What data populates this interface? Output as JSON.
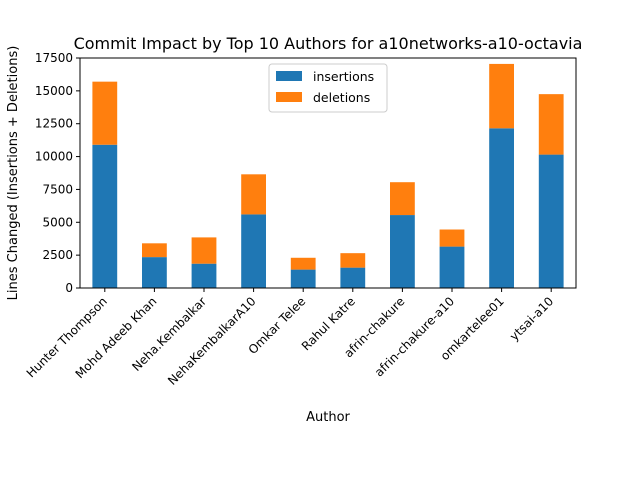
{
  "chart_data": {
    "type": "bar",
    "stacked": true,
    "title": "Commit Impact by Top 10 Authors for a10networks-a10-octavia",
    "xlabel": "Author",
    "ylabel": "Lines Changed (Insertions + Deletions)",
    "categories": [
      "Hunter Thompson",
      "Mohd Adeeb Khan",
      "Neha.Kembalkar",
      "NehaKembalkarA10",
      "Omkar Telee",
      "Rahul Katre",
      "afrin-chakure",
      "afrin-chakure-a10",
      "omkartelee01",
      "ytsai-a10"
    ],
    "series": [
      {
        "name": "insertions",
        "color": "#1f77b4",
        "values": [
          10900,
          2350,
          1850,
          5600,
          1400,
          1550,
          5550,
          3150,
          12150,
          10150
        ]
      },
      {
        "name": "deletions",
        "color": "#ff7f0e",
        "values": [
          4800,
          1050,
          2000,
          3050,
          900,
          1100,
          2500,
          1300,
          4900,
          4600
        ]
      }
    ],
    "ylim": [
      0,
      17500
    ],
    "yticks": [
      0,
      2500,
      5000,
      7500,
      10000,
      12500,
      15000,
      17500
    ],
    "ytick_labels": [
      "0",
      "2500",
      "5000",
      "7500",
      "10000",
      "12500",
      "15000",
      "17500"
    ],
    "grid": false,
    "legend_position": "top-center"
  }
}
